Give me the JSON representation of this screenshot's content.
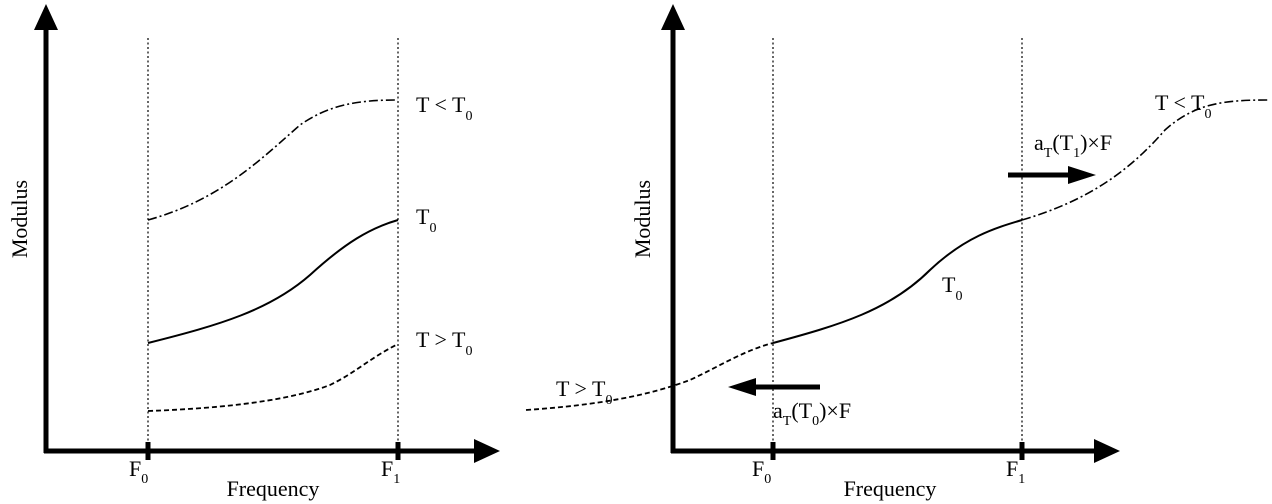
{
  "left_panel": {
    "y_axis_label": "Modulus",
    "x_axis_label": "Frequency",
    "tick_f0": {
      "base": "F",
      "sub": "0"
    },
    "tick_f1": {
      "base": "F",
      "sub": "1"
    },
    "curve_cold_label": {
      "base": "T < T",
      "sub": "0"
    },
    "curve_ref_label": {
      "base": "T",
      "sub": "0"
    },
    "curve_hot_label": {
      "base": "T > T",
      "sub": "0"
    }
  },
  "right_panel": {
    "y_axis_label": "Modulus",
    "x_axis_label": "Frequency",
    "tick_f0": {
      "base": "F",
      "sub": "0"
    },
    "tick_f1": {
      "base": "F",
      "sub": "1"
    },
    "curve_cold_label": {
      "base": "T < T",
      "sub": "0"
    },
    "curve_ref_label": {
      "base": "T",
      "sub": "0"
    },
    "curve_hot_label": {
      "base": "T > T",
      "sub": "0"
    },
    "shift_right_label": {
      "a": "a",
      "a_sub": "T",
      "mid": "(T",
      "mid_sub": "1",
      "end": ")×F"
    },
    "shift_left_label": {
      "a": "a",
      "a_sub": "T",
      "mid": "(T",
      "mid_sub": "0",
      "end": ")×F"
    }
  },
  "line_styles": {
    "cold": "dash-dot",
    "reference": "solid",
    "hot": "dashed"
  }
}
